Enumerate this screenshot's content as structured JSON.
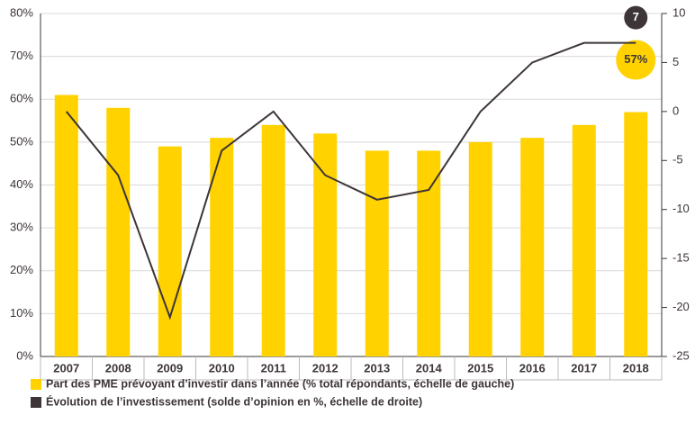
{
  "chart_data": {
    "type": "bar+line",
    "categories": [
      "2007",
      "2008",
      "2009",
      "2010",
      "2011",
      "2012",
      "2013",
      "2014",
      "2015",
      "2016",
      "2017",
      "2018"
    ],
    "series": [
      {
        "name": "Part des PME prévoyant d’investir dans l’année (% total répondants, échelle de gauche)",
        "type": "bar",
        "color": "#ffd200",
        "values": [
          61,
          58,
          49,
          51,
          54,
          52,
          48,
          48,
          50,
          51,
          54,
          57
        ],
        "value_labels": [
          null,
          null,
          null,
          null,
          null,
          null,
          null,
          null,
          null,
          null,
          null,
          "57%"
        ]
      },
      {
        "name": "Évolution de l’investissement (solde d’opinion en %, échelle de droite)",
        "type": "line",
        "color": "#3d3537",
        "axis": "y2",
        "values": [
          0,
          -6.5,
          -21,
          -4,
          0,
          -6.5,
          -9,
          -8,
          0,
          5,
          7,
          7
        ]
      }
    ],
    "ylim": [
      0,
      80
    ],
    "yticks": [
      {
        "value": 0,
        "label": "0%"
      },
      {
        "value": 10,
        "label": "10%"
      },
      {
        "value": 20,
        "label": "20%"
      },
      {
        "value": 30,
        "label": "30%"
      },
      {
        "value": 40,
        "label": "40%"
      },
      {
        "value": 50,
        "label": "50%"
      },
      {
        "value": 60,
        "label": "60%"
      },
      {
        "value": 70,
        "label": "70%"
      },
      {
        "value": 80,
        "label": "80%"
      }
    ],
    "y2lim": [
      -25,
      10
    ],
    "y2ticks": [
      10,
      5,
      0,
      -5,
      -10,
      -15,
      -20,
      -25
    ],
    "grid": true,
    "legend": "bottom"
  }
}
